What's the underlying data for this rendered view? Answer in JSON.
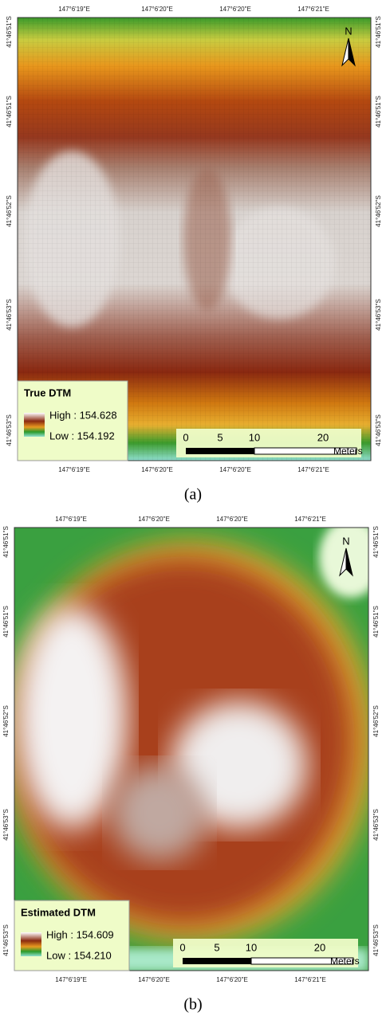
{
  "panels": [
    {
      "caption": "(a)",
      "north": "N",
      "legend": {
        "title": "True DTM",
        "high": "High : 154.628",
        "low": "Low : 154.192"
      },
      "top_labels": [
        "147°6'19\"E",
        "147°6'20\"E",
        "147°6'20\"E",
        "147°6'21\"E"
      ],
      "bottom_labels": [
        "147°6'19\"E",
        "147°6'20\"E",
        "147°6'20\"E",
        "147°6'21\"E"
      ],
      "left_labels": [
        "41°46'51\"S",
        "41°46'51\"S",
        "41°46'52\"S",
        "41°46'53\"S",
        "41°46'53\"S"
      ],
      "right_labels": [
        "41°46'51\"S",
        "41°46'51\"S",
        "41°46'52\"S",
        "41°46'53\"S",
        "41°46'53\"S"
      ],
      "scale": {
        "ticks": [
          0,
          5,
          10,
          20
        ],
        "unit": "Meters"
      }
    },
    {
      "caption": "(b)",
      "north": "N",
      "legend": {
        "title": "Estimated DTM",
        "high": "High : 154.609",
        "low": "Low : 154.210"
      },
      "top_labels": [
        "147°6'19\"E",
        "147°6'20\"E",
        "147°6'20\"E",
        "147°6'21\"E"
      ],
      "bottom_labels": [
        "147°6'19\"E",
        "147°6'20\"E",
        "147°6'20\"E",
        "147°6'21\"E"
      ],
      "left_labels": [
        "41°46'51\"S",
        "41°46'51\"S",
        "41°46'52\"S",
        "41°46'53\"S",
        "41°46'53\"S"
      ],
      "right_labels": [
        "41°46'51\"S",
        "41°46'51\"S",
        "41°46'52\"S",
        "41°46'53\"S",
        "41°46'53\"S"
      ],
      "scale": {
        "ticks": [
          0,
          5,
          10,
          20
        ],
        "unit": "Meters"
      }
    }
  ]
}
